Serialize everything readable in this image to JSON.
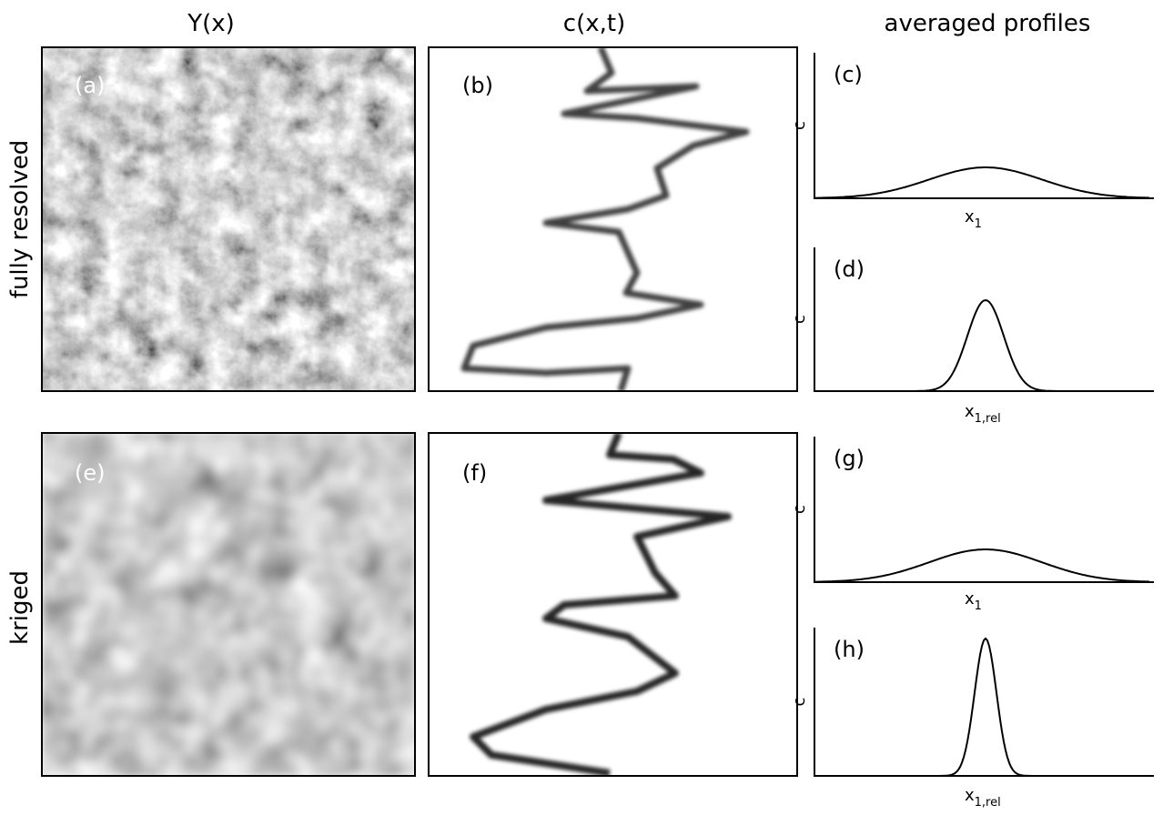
{
  "columns": [
    "Y(x)",
    "c(x,t)",
    "averaged profiles"
  ],
  "rows": [
    "fully resolved",
    "kriged"
  ],
  "panels": [
    {
      "label": "(a)"
    },
    {
      "label": "(b)"
    },
    {
      "label": "(c)",
      "y_label": "c",
      "x_label": {
        "base": "x",
        "sub": "1"
      }
    },
    {
      "label": "(d)",
      "y_label": "c",
      "x_label": {
        "base": "x",
        "sub": "1,rel"
      }
    },
    {
      "label": "(e)"
    },
    {
      "label": "(f)"
    },
    {
      "label": "(g)",
      "y_label": "c",
      "x_label": {
        "base": "x",
        "sub": "1"
      }
    },
    {
      "label": "(h)",
      "y_label": "c",
      "x_label": {
        "base": "x",
        "sub": "1,rel"
      }
    }
  ]
}
